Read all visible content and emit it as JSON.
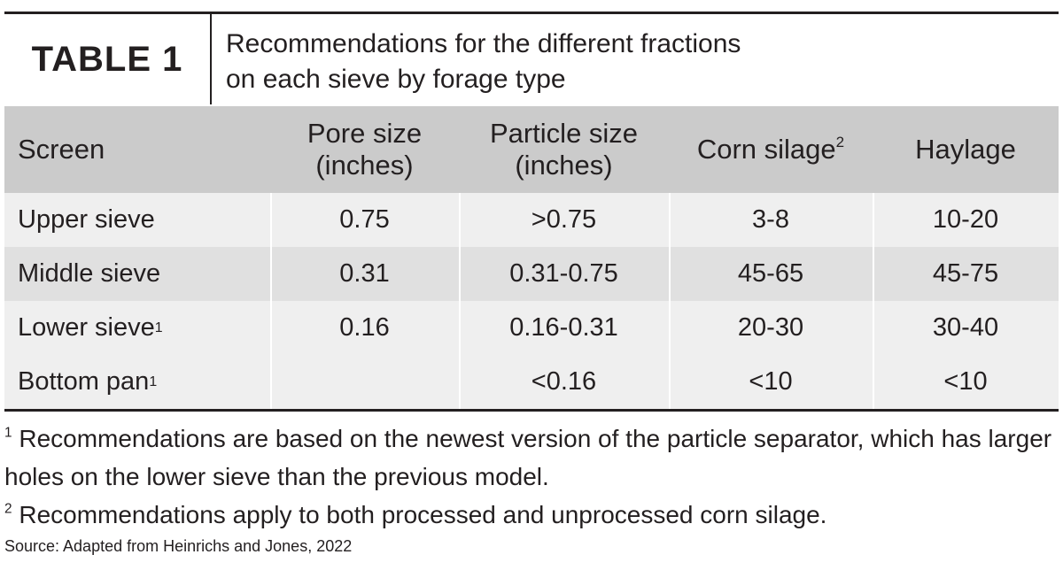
{
  "header": {
    "tag": "TABLE 1",
    "title_lines": [
      "Recommendations for the different fractions",
      "on each sieve by forage type"
    ]
  },
  "table": {
    "columns": [
      {
        "lines": [
          "Screen"
        ],
        "note": null
      },
      {
        "lines": [
          "Pore size",
          "(inches)"
        ],
        "note": null
      },
      {
        "lines": [
          "Particle size",
          "(inches)"
        ],
        "note": null
      },
      {
        "lines": [
          "Corn silage"
        ],
        "note": "2"
      },
      {
        "lines": [
          "Haylage"
        ],
        "note": null
      }
    ],
    "rows": [
      {
        "label": "Upper sieve",
        "note": null,
        "cells": [
          "0.75",
          ">0.75",
          "3-8",
          "10-20"
        ]
      },
      {
        "label": "Middle sieve",
        "note": null,
        "cells": [
          "0.31",
          "0.31-0.75",
          "45-65",
          "45-75"
        ]
      },
      {
        "label": "Lower sieve",
        "note": "1",
        "cells": [
          "0.16",
          "0.16-0.31",
          "20-30",
          "30-40"
        ]
      },
      {
        "label": "Bottom pan",
        "note": "1",
        "cells": [
          null,
          "<0.16",
          "<10",
          "<10"
        ]
      }
    ]
  },
  "footnotes": [
    {
      "marker": "1",
      "text": "Recommendations are based on the newest version of the particle separator, which has larger holes on the lower sieve than the previous model."
    },
    {
      "marker": "2",
      "text": "Recommendations apply to both processed and unprocessed corn silage."
    }
  ],
  "source": "Source: Adapted from Heinrichs and Jones, 2022"
}
